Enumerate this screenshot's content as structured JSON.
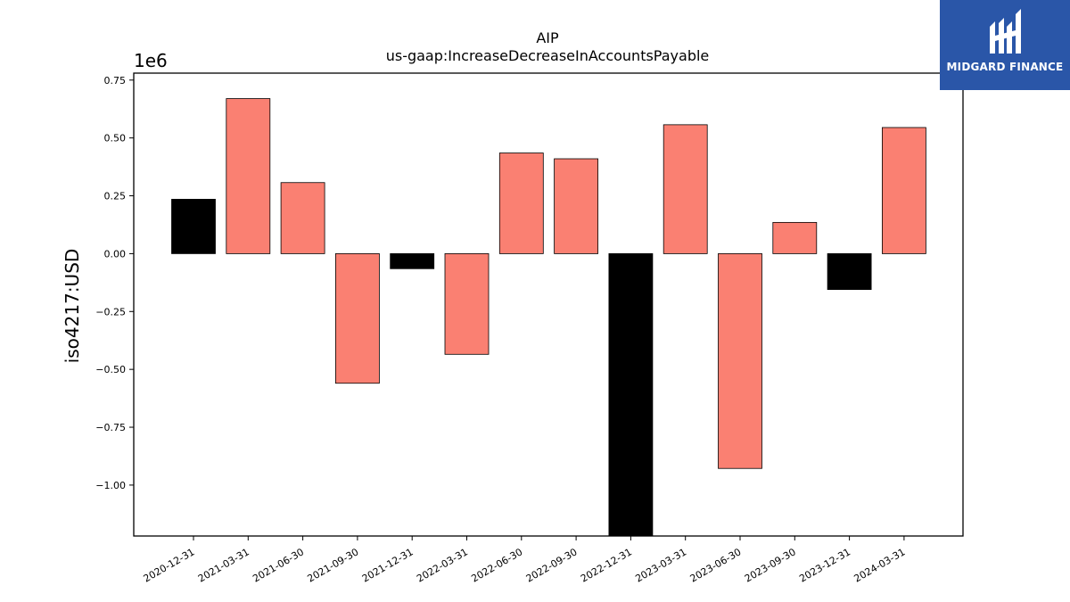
{
  "logo": {
    "text": "MIDGARD FINANCE",
    "bg_color": "#2a56a8"
  },
  "chart_data": {
    "type": "bar",
    "title": "AIP",
    "subtitle": "us-gaap:IncreaseDecreaseInAccountsPayable",
    "ylabel": "iso4217:USD",
    "xlabel": "",
    "y_offset_label": "1e6",
    "ylim": [
      -1.22,
      0.78
    ],
    "yticks": [
      0.75,
      0.5,
      0.25,
      0.0,
      -0.25,
      -0.5,
      -0.75,
      -1.0
    ],
    "ytick_labels": [
      "0.75",
      "0.50",
      "0.25",
      "0.00",
      "−0.25",
      "−0.50",
      "−0.75",
      "−1.00"
    ],
    "categories": [
      "2020-12-31",
      "2021-03-31",
      "2021-06-30",
      "2021-09-30",
      "2021-12-31",
      "2022-03-31",
      "2022-06-30",
      "2022-09-30",
      "2022-12-31",
      "2023-03-31",
      "2023-06-30",
      "2023-09-30",
      "2023-12-31",
      "2024-03-31"
    ],
    "values": [
      0.235,
      0.67,
      0.307,
      -0.56,
      -0.065,
      -0.435,
      0.435,
      0.41,
      -1.25,
      0.557,
      -0.928,
      0.135,
      -0.155,
      0.545
    ],
    "bar_colors": [
      "#000000",
      "#fa8072",
      "#fa8072",
      "#fa8072",
      "#000000",
      "#fa8072",
      "#fa8072",
      "#fa8072",
      "#000000",
      "#fa8072",
      "#fa8072",
      "#fa8072",
      "#000000",
      "#fa8072"
    ],
    "grid": false,
    "legend": "none"
  }
}
